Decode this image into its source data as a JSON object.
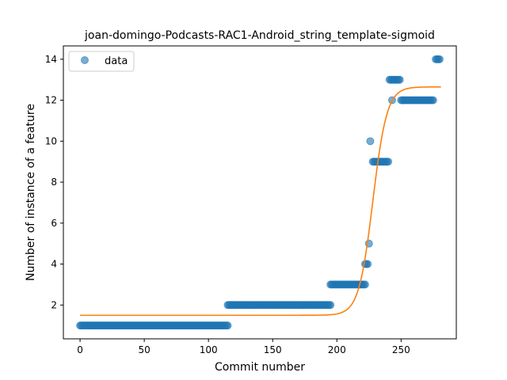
{
  "chart_data": {
    "type": "scatter",
    "title": "joan-domingo-Podcasts-RAC1-Android_string_template-sigmoid",
    "xlabel": "Commit number",
    "ylabel": "Number of instance of a feature",
    "xlim": [
      -13,
      293
    ],
    "ylim": [
      0.35,
      14.65
    ],
    "xticks": [
      0,
      50,
      100,
      150,
      200,
      250
    ],
    "yticks": [
      2,
      4,
      6,
      8,
      10,
      12,
      14
    ],
    "grid": false,
    "legend_position": "upper-left",
    "series": [
      {
        "name": "data",
        "kind": "scatter",
        "color": "#1f77b4",
        "opacity": 0.6,
        "segments": [
          {
            "x_from": 0,
            "x_to": 115,
            "y": 1
          },
          {
            "x_from": 115,
            "x_to": 195,
            "y": 2
          },
          {
            "x_from": 195,
            "x_to": 222,
            "y": 3
          },
          {
            "x_from": 222,
            "x_to": 224,
            "y": 4
          },
          {
            "x_from": 228,
            "x_to": 240,
            "y": 9
          },
          {
            "x_from": 241,
            "x_to": 249,
            "y": 13
          },
          {
            "x_from": 250,
            "x_to": 275,
            "y": 12
          },
          {
            "x_from": 277,
            "x_to": 280,
            "y": 14
          }
        ],
        "points": [
          [
            225,
            5
          ],
          [
            226,
            10
          ],
          [
            243,
            12
          ]
        ]
      },
      {
        "name": "",
        "kind": "line",
        "color": "#ff7f0e",
        "model": "sigmoid",
        "params": {
          "lower": 1.5,
          "upper": 12.65,
          "midpoint": 228,
          "scale": 5.5
        },
        "x_range": [
          0,
          281
        ]
      }
    ]
  }
}
